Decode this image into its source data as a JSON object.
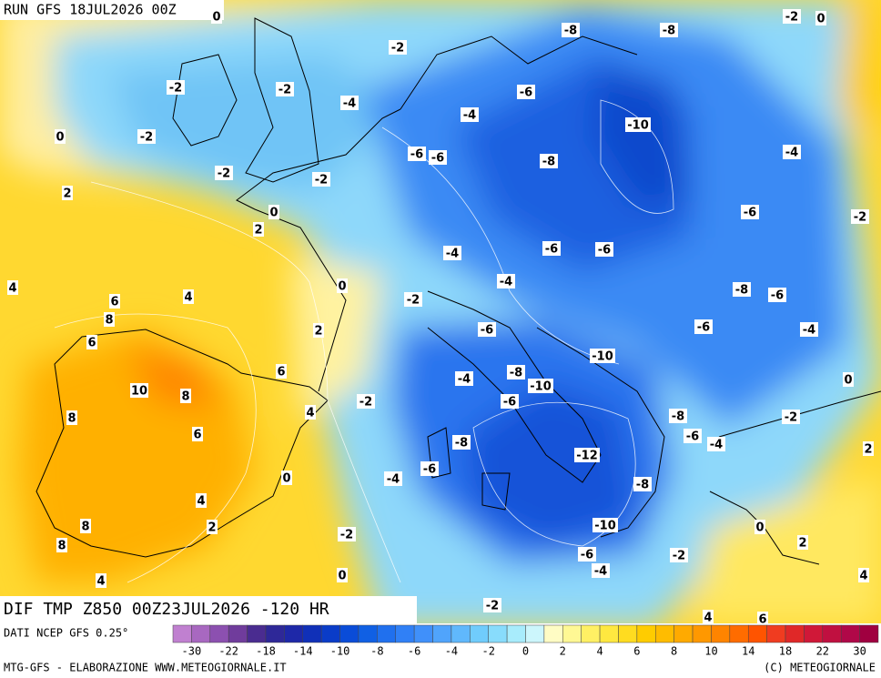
{
  "header": {
    "title": "RUN GFS 18JUL2026 00Z"
  },
  "map": {
    "contour_labels": [
      "-2",
      "0",
      "0",
      "-8",
      "-8",
      "-2",
      "-2",
      "-2",
      "-4",
      "-6",
      "-4",
      "-10",
      "0",
      "-2",
      "-6",
      "-6",
      "-8",
      "-4",
      "-2",
      "-2",
      "2",
      "0",
      "-6",
      "-2",
      "2",
      "-4",
      "-6",
      "-6",
      "4",
      "0",
      "-4",
      "-8",
      "-6",
      "6",
      "4",
      "-2",
      "8",
      "2",
      "-6",
      "-6",
      "-4",
      "6",
      "-10",
      "6",
      "-4",
      "-8",
      "-10",
      "0",
      "10",
      "8",
      "-2",
      "-6",
      "4",
      "-8",
      "-2",
      "8",
      "6",
      "-6",
      "-4",
      "-8",
      "2",
      "-12",
      "-6",
      "-4",
      "0",
      "-8",
      "4",
      "8",
      "2",
      "-10",
      "0",
      "-2",
      "8",
      "2",
      "-6",
      "-2",
      "-4",
      "0",
      "4",
      "4",
      "-2",
      "4",
      "6"
    ]
  },
  "caption": "DIF TMP Z850 00Z23JUL2026 -120 HR",
  "source": "DATI NCEP GFS 0.25°",
  "colorbar": {
    "colors": [
      "#c080d0",
      "#a868c0",
      "#8c50b0",
      "#703c9c",
      "#4a2c90",
      "#2e2898",
      "#1e28a8",
      "#1030b8",
      "#0a3cc8",
      "#0a4cd8",
      "#1060e4",
      "#2070ee",
      "#3080f6",
      "#4090fa",
      "#50a4fc",
      "#60b8fc",
      "#70ccfc",
      "#88dcfc",
      "#a8ecfc",
      "#ccf6fc",
      "#fffcc4",
      "#fff894",
      "#fff064",
      "#ffe840",
      "#ffdc20",
      "#ffcc00",
      "#ffbc00",
      "#ffaa00",
      "#ff9800",
      "#ff8400",
      "#ff6c00",
      "#ff5400",
      "#f03c20",
      "#e02828",
      "#d01838",
      "#c01040",
      "#b00848",
      "#a00040"
    ],
    "labels": [
      "-30",
      "-22",
      "-18",
      "-14",
      "-10",
      "-8",
      "-6",
      "-4",
      "-2",
      "0",
      "2",
      "4",
      "6",
      "8",
      "10",
      "14",
      "18",
      "22",
      "30"
    ]
  },
  "footer": {
    "left": "MTG-GFS - ELABORAZIONE WWW.METEOGIORNALE.IT",
    "right": "(C) METEOGIORNALE"
  }
}
